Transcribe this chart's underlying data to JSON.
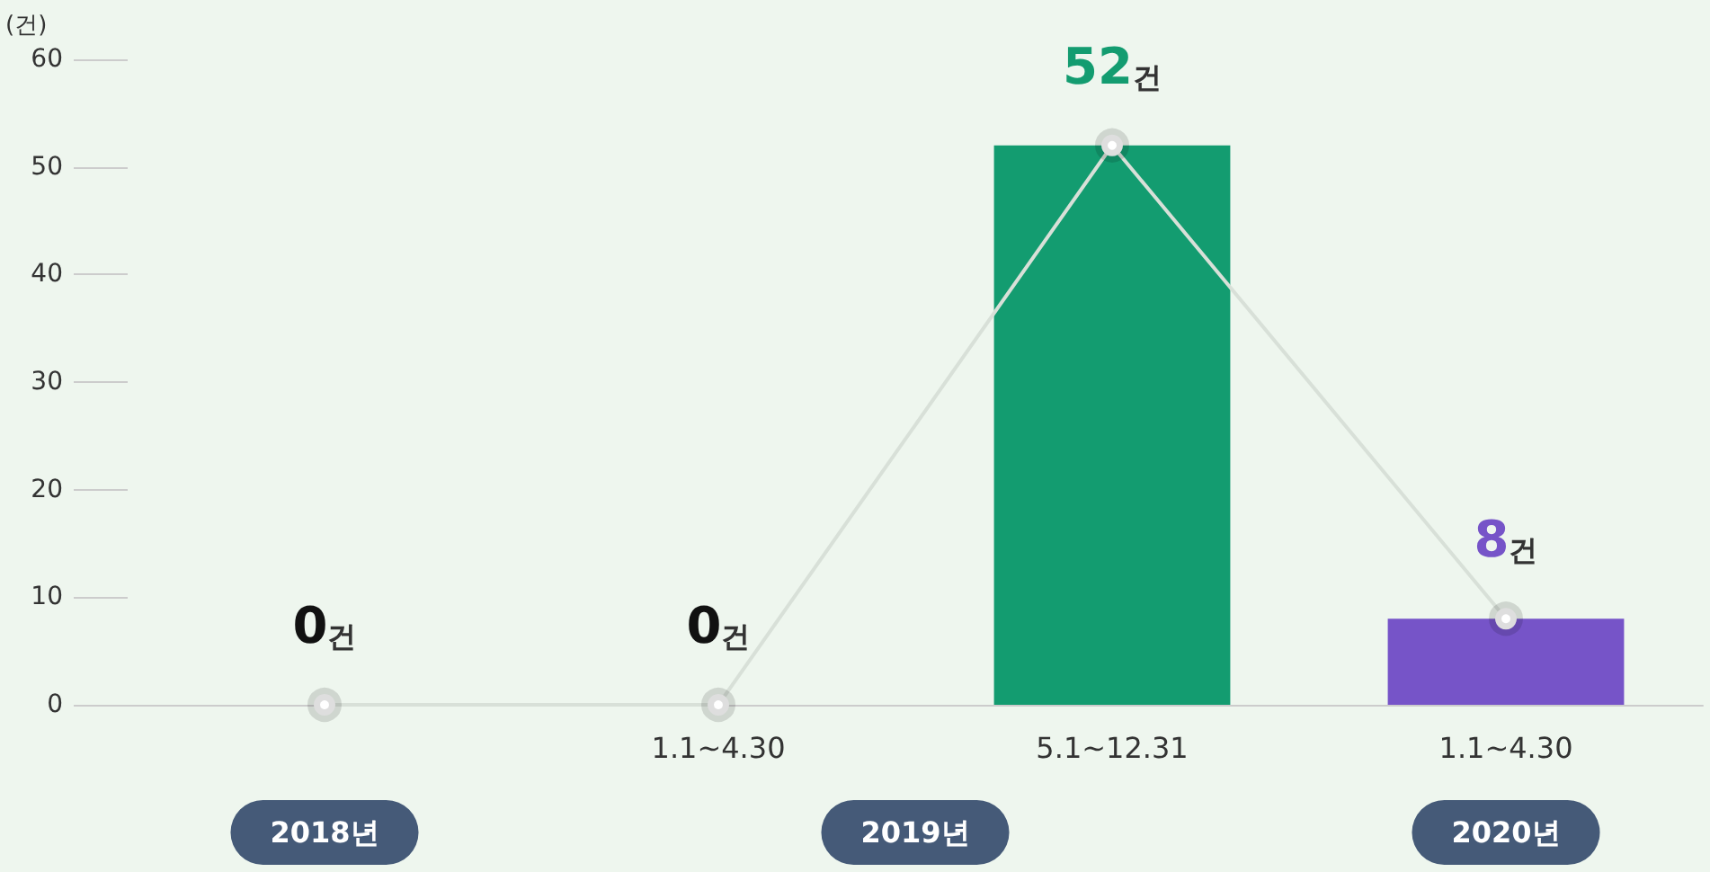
{
  "chart_data": {
    "type": "bar",
    "ylabel": "(건)",
    "categories": [
      null,
      "1.1~4.30",
      "5.1~12.31",
      "1.1~4.30"
    ],
    "series": [
      {
        "values": [
          0,
          0,
          52,
          8
        ],
        "colors": [
          "#111111",
          "#111111",
          "#139c70",
          "#7654c8"
        ],
        "value_labels": [
          "0건",
          "0건",
          "52건",
          "8건"
        ]
      },
      {
        "type": "line",
        "values": [
          0,
          0,
          52,
          8
        ],
        "color": "#d8e0d8",
        "marker": "circle"
      }
    ],
    "ylim": [
      0,
      60
    ],
    "yticks": [
      0,
      10,
      20,
      30,
      40,
      50,
      60
    ],
    "annotations": [
      "2018년",
      "2019년",
      "2020년"
    ]
  }
}
